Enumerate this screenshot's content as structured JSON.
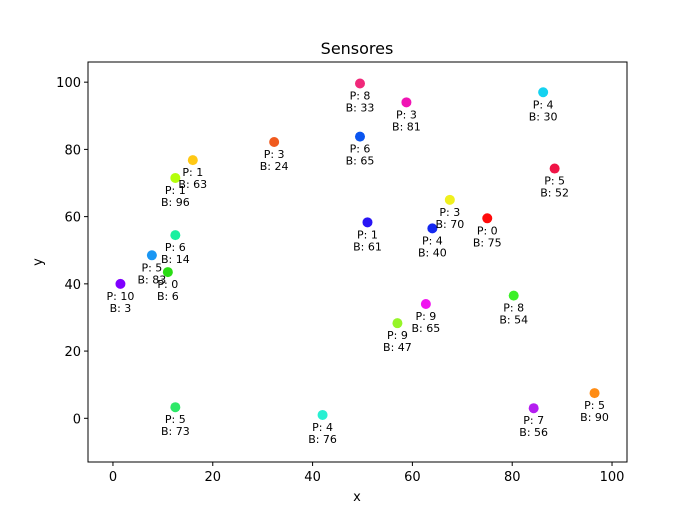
{
  "chart_data": {
    "type": "scatter",
    "title": "Sensores",
    "xlabel": "x",
    "ylabel": "y",
    "xlim": [
      -5,
      103
    ],
    "ylim": [
      -13,
      106
    ],
    "xticks": [
      0,
      20,
      40,
      60,
      80,
      100
    ],
    "yticks": [
      0,
      20,
      40,
      60,
      80,
      100
    ],
    "grid": false,
    "points": [
      {
        "x": 1.5,
        "y": 40,
        "color": "#7f00ff",
        "label_p": "P: 10",
        "label_b": "B: 3"
      },
      {
        "x": 7.8,
        "y": 48.5,
        "color": "#1996f3",
        "label_p": "P: 5",
        "label_b": "B: 83"
      },
      {
        "x": 11,
        "y": 43.5,
        "color": "#2adc14",
        "label_p": "P: 0",
        "label_b": "B: 6"
      },
      {
        "x": 12.5,
        "y": 54.5,
        "color": "#19f0a0",
        "label_p": "P: 6",
        "label_b": "B: 14"
      },
      {
        "x": 12.5,
        "y": 71.5,
        "color": "#b4ff0a",
        "label_p": "P: 1",
        "label_b": "B: 96"
      },
      {
        "x": 16,
        "y": 76.8,
        "color": "#ffc814",
        "label_p": "P: 1",
        "label_b": "B: 63"
      },
      {
        "x": 12.5,
        "y": 3.3,
        "color": "#2ee868",
        "label_p": "P: 5",
        "label_b": "B: 73"
      },
      {
        "x": 32.3,
        "y": 82.2,
        "color": "#f05a1e",
        "label_p": "P: 3",
        "label_b": "B: 24"
      },
      {
        "x": 42,
        "y": 1,
        "color": "#28f0d2",
        "label_p": "P: 4",
        "label_b": "B: 76"
      },
      {
        "x": 49.5,
        "y": 99.6,
        "color": "#f0287a",
        "label_p": "P: 8",
        "label_b": "B: 33"
      },
      {
        "x": 49.5,
        "y": 83.8,
        "color": "#0a55f0",
        "label_p": "P: 6",
        "label_b": "B: 65"
      },
      {
        "x": 51,
        "y": 58.3,
        "color": "#2814f5",
        "label_p": "P: 1",
        "label_b": "B: 61"
      },
      {
        "x": 57,
        "y": 28.3,
        "color": "#96f528",
        "label_p": "P: 9",
        "label_b": "B: 47"
      },
      {
        "x": 58.8,
        "y": 94,
        "color": "#f014b4",
        "label_p": "P: 3",
        "label_b": "B: 81"
      },
      {
        "x": 62.7,
        "y": 34,
        "color": "#f014f0",
        "label_p": "P: 9",
        "label_b": "B: 65"
      },
      {
        "x": 64,
        "y": 56.5,
        "color": "#1428f0",
        "label_p": "P: 4",
        "label_b": "B: 40"
      },
      {
        "x": 67.5,
        "y": 65,
        "color": "#f0f01e",
        "label_p": "P: 3",
        "label_b": "B: 70"
      },
      {
        "x": 75,
        "y": 59.5,
        "color": "#ff0a0a",
        "label_p": "P: 0",
        "label_b": "B: 75"
      },
      {
        "x": 80.3,
        "y": 36.5,
        "color": "#3cf028",
        "label_p": "P: 8",
        "label_b": "B: 54"
      },
      {
        "x": 84.3,
        "y": 3,
        "color": "#b41ef0",
        "label_p": "P: 7",
        "label_b": "B: 56"
      },
      {
        "x": 86.2,
        "y": 97,
        "color": "#14d2f0",
        "label_p": "P: 4",
        "label_b": "B: 30"
      },
      {
        "x": 88.5,
        "y": 74.3,
        "color": "#f01446",
        "label_p": "P: 5",
        "label_b": "B: 52"
      },
      {
        "x": 96.5,
        "y": 7.5,
        "color": "#ff8c14",
        "label_p": "P: 5",
        "label_b": "B: 90"
      }
    ]
  }
}
